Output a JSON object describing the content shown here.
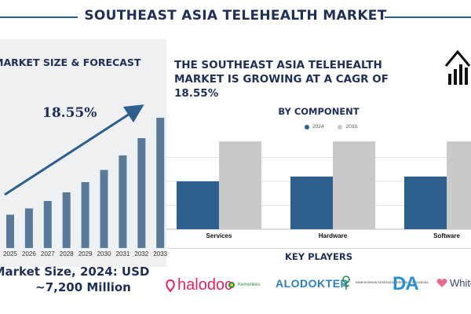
{
  "header": {
    "title": "SOUTHEAST ASIA TELEHEALTH MARKET"
  },
  "forecast": {
    "title": "MARKET SIZE & FORECAST",
    "cagr_label": "18.55%",
    "market_size_line1": "Market Size, 2024: USD",
    "market_size_line2": "~7,200 Million"
  },
  "headline": "THE SOUTHEAST ASIA TELEHEALTH MARKET IS GROWING AT A CAGR OF 18.55%",
  "component": {
    "title": "BY COMPONENT"
  },
  "key_players": {
    "title": "KEY PLAYERS",
    "logos": {
      "halodoc": "halodoc",
      "kemenkes": "Kemenkes",
      "alodokter": "ALODOKTER",
      "kemenkes2": "KEMENTERIAN KESEHATAN REPUBLIK INDONESIA",
      "da": "DA",
      "white": "White"
    }
  },
  "colors": {
    "navy": "#2c5f8e",
    "bar_forecast": "#5a7a99",
    "gray": "#c9c9c9",
    "title": "#1f2f55"
  },
  "chart_data": [
    {
      "type": "bar",
      "categories": [
        "2025",
        "2026",
        "2027",
        "2028",
        "2029",
        "2030",
        "2031",
        "2032",
        "2033"
      ],
      "values": [
        8.5,
        10.1,
        12.0,
        14.2,
        16.8,
        19.9,
        23.6,
        28.0,
        33.2
      ],
      "title": "MARKET SIZE & FORECAST",
      "annotations": [
        "18.55%"
      ],
      "ylim": [
        0,
        36
      ]
    },
    {
      "type": "bar",
      "title": "BY COMPONENT",
      "categories": [
        "Services",
        "Hardware",
        "Software"
      ],
      "series": [
        {
          "name": "2024",
          "values": [
            30,
            33,
            33
          ]
        },
        {
          "name": "2033",
          "values": [
            55,
            55,
            55
          ]
        }
      ],
      "ylim": [
        0,
        60
      ],
      "legend": "top-center"
    }
  ]
}
